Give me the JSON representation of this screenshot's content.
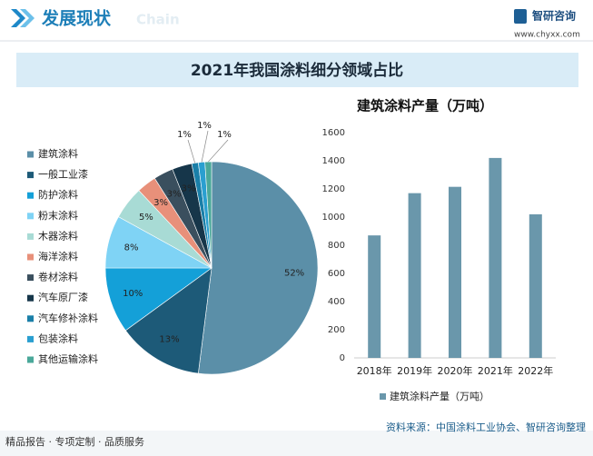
{
  "header": {
    "title": "发展现状",
    "watermark": "Chain",
    "brand": "智研咨询",
    "url": "www.chyxx.com"
  },
  "chart_data": [
    {
      "type": "pie",
      "title": "2021年我国涂料细分领域占比",
      "categories": [
        "建筑涂料",
        "一般工业漆",
        "防护涂料",
        "粉末涂料",
        "木器涂料",
        "海洋涂料",
        "卷材涂料",
        "汽车原厂漆",
        "汽车修补涂料",
        "包装涂料",
        "其他运输涂料"
      ],
      "values": [
        52,
        13,
        10,
        8,
        5,
        3,
        3,
        3,
        1,
        1,
        1
      ],
      "value_labels": [
        "52%",
        "13%",
        "10%",
        "8%",
        "5%",
        "3%",
        "3%",
        "3%",
        "1%",
        "1%",
        "1%"
      ],
      "colors": [
        "#5b8fa8",
        "#1d5a78",
        "#14a0d8",
        "#7fd3f5",
        "#a8dbd5",
        "#e8907a",
        "#3a4f5e",
        "#16364a",
        "#1a7fa8",
        "#2a9fd0",
        "#4aa89a"
      ]
    },
    {
      "type": "bar",
      "title": "建筑涂料产量（万吨）",
      "categories": [
        "2018年",
        "2019年",
        "2020年",
        "2021年",
        "2022年"
      ],
      "series": [
        {
          "name": "建筑涂料产量（万吨）",
          "color": "#6a97ab",
          "values": [
            870,
            1170,
            1215,
            1420,
            1020
          ]
        }
      ],
      "ylim": [
        0,
        1600
      ],
      "yticks": [
        0,
        200,
        400,
        600,
        800,
        1000,
        1200,
        1400,
        1600
      ],
      "grid": false
    }
  ],
  "footer": {
    "left": "精品报告 · 专项定制 · 品质服务",
    "source": "资料来源：中国涂料工业协会、智研咨询整理"
  }
}
